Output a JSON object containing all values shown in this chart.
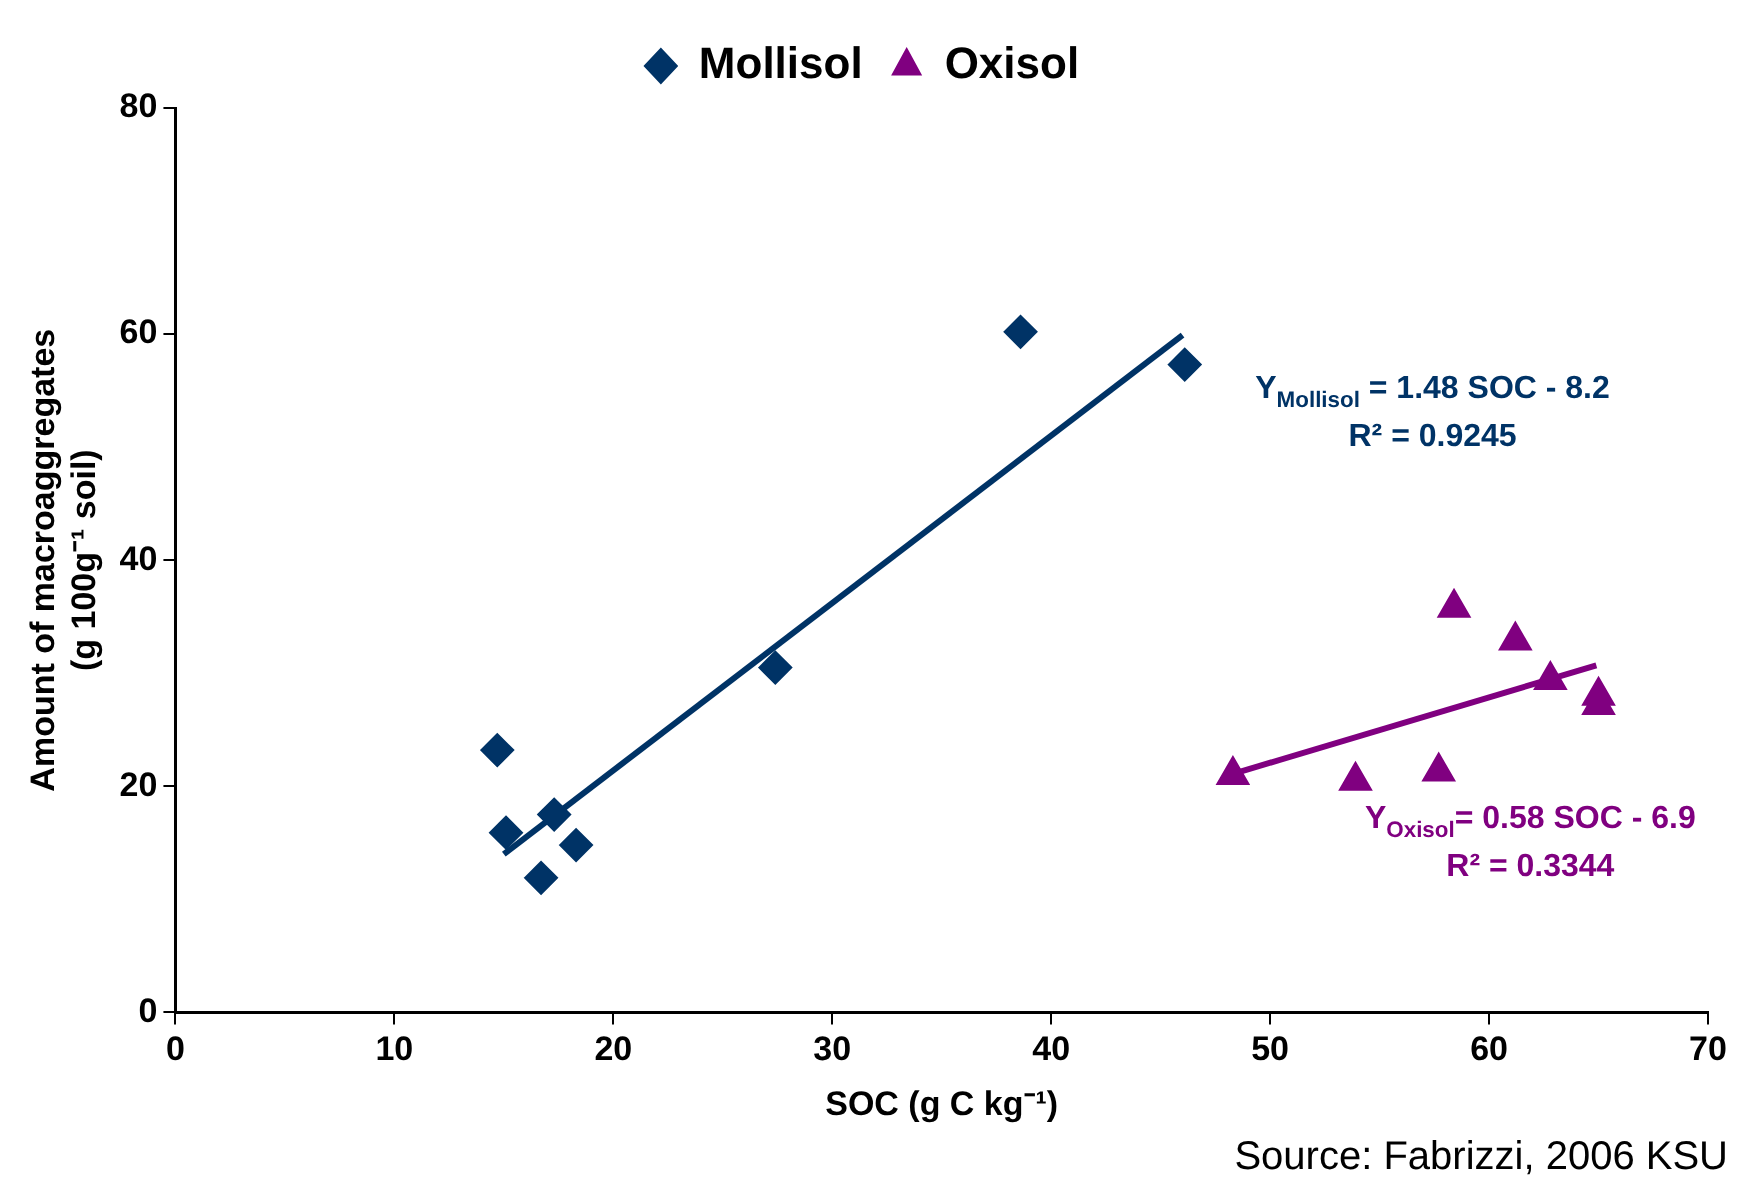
{
  "chart_data": {
    "type": "scatter",
    "xlabel": "SOC (g C kg⁻¹)",
    "ylabel": "Amount of macroaggregates (g 100g⁻¹ soil)",
    "series": [
      {
        "name": "Mollisol",
        "marker": "diamond",
        "color": "#003366",
        "x": [
          14.7,
          15.1,
          17.3,
          16.7,
          18.3,
          27.4,
          38.6,
          46.1
        ],
        "values": [
          23.2,
          15.9,
          17.5,
          11.9,
          14.8,
          30.5,
          60.2,
          57.3
        ]
      },
      {
        "name": "Oxisol",
        "marker": "triangle",
        "color": "#800080",
        "x": [
          48.3,
          53.9,
          57.7,
          58.4,
          61.2,
          62.8,
          65.0,
          65.0
        ],
        "values": [
          21.0,
          20.5,
          21.3,
          35.8,
          32.9,
          29.4,
          28.0,
          27.2
        ]
      },
      {
        "type": "line",
        "color": "#003366",
        "x": [
          15.0,
          46.0
        ],
        "values": [
          14.0,
          59.9
        ]
      },
      {
        "type": "line",
        "color": "#800080",
        "x": [
          48.3,
          64.9
        ],
        "values": [
          21.1,
          30.7
        ]
      }
    ],
    "xlim": [
      0,
      70
    ],
    "xticks": [
      0,
      10,
      20,
      30,
      40,
      50,
      60,
      70
    ],
    "ylim": [
      0,
      80
    ],
    "yticks": [
      0,
      20,
      40,
      60,
      80
    ],
    "grid": false,
    "legend": "top",
    "annotations": [
      "Y$_{Mollisol}$ = 1.48 SOC - 8.2",
      "R² = 0.9245",
      "Y$_{Oxisol}$= 0.58 SOC - 6.9",
      "R² = 0.3344",
      "Source: Fabrizzi, 2006 KSU"
    ]
  }
}
